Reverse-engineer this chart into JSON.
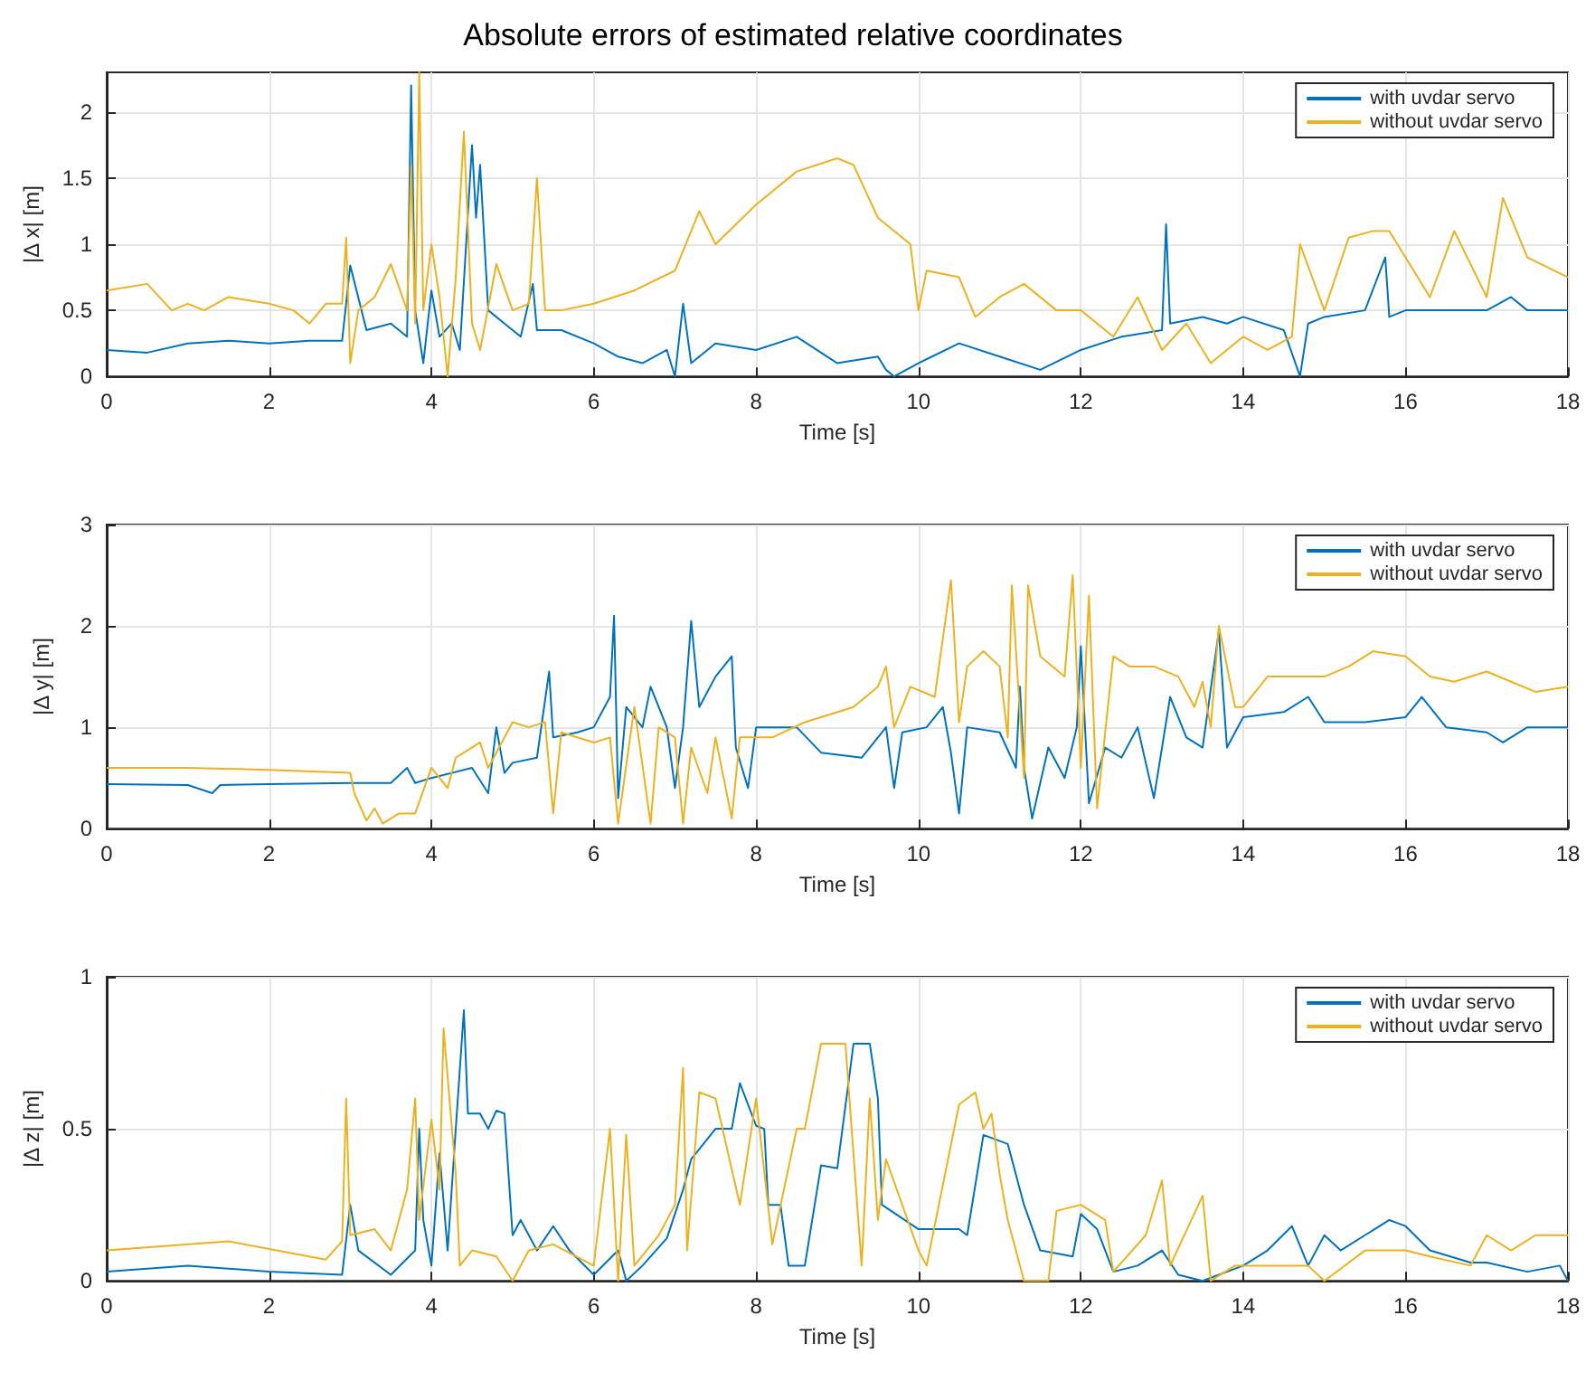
{
  "chart_data": [
    {
      "type": "line",
      "title": "Absolute errors of estimated relative coordinates",
      "xlabel": "Time [s]",
      "ylabel": "|Δ x| [m]",
      "xlim": [
        0,
        18
      ],
      "xticks": [
        0,
        2,
        4,
        6,
        8,
        10,
        12,
        14,
        16,
        18
      ],
      "ylim": [
        0,
        2.3
      ],
      "yticks": [
        0,
        0.5,
        1,
        1.5,
        2
      ],
      "grid": true,
      "legend": "top right",
      "marker": "none",
      "line_style": "solid",
      "series": [
        {
          "name": "with uvdar servo",
          "color": "#0072bd",
          "x": [
            0,
            0.5,
            1,
            1.5,
            2,
            2.5,
            2.9,
            3,
            3.2,
            3.5,
            3.7,
            3.75,
            3.8,
            3.9,
            4,
            4.1,
            4.25,
            4.35,
            4.5,
            4.55,
            4.6,
            4.7,
            4.9,
            5.1,
            5.25,
            5.3,
            5.6,
            6,
            6.3,
            6.6,
            6.9,
            7,
            7.1,
            7.2,
            7.5,
            8,
            8.5,
            9,
            9.5,
            9.6,
            9.7,
            10,
            10.5,
            11,
            11.5,
            12,
            12.5,
            13,
            13.05,
            13.1,
            13.5,
            13.8,
            14,
            14.5,
            14.7,
            14.8,
            15,
            15.5,
            15.75,
            15.8,
            16,
            16.5,
            17,
            17.3,
            17.5,
            18
          ],
          "values": [
            0.2,
            0.18,
            0.25,
            0.27,
            0.25,
            0.27,
            0.27,
            0.84,
            0.35,
            0.4,
            0.3,
            2.2,
            0.5,
            0.1,
            0.65,
            0.3,
            0.4,
            0.2,
            1.75,
            1.2,
            1.6,
            0.5,
            0.4,
            0.3,
            0.7,
            0.35,
            0.35,
            0.25,
            0.15,
            0.1,
            0.2,
            0,
            0.55,
            0.1,
            0.25,
            0.2,
            0.3,
            0.1,
            0.15,
            0.05,
            0,
            0.1,
            0.25,
            0.15,
            0.05,
            0.2,
            0.3,
            0.35,
            1.15,
            0.4,
            0.45,
            0.4,
            0.45,
            0.35,
            0,
            0.4,
            0.45,
            0.5,
            0.9,
            0.45,
            0.5,
            0.5,
            0.5,
            0.6,
            0.5,
            0.5
          ]
        },
        {
          "name": "without uvdar servo",
          "color": "#edb120",
          "x": [
            0,
            0.5,
            0.8,
            1,
            1.2,
            1.5,
            2,
            2.3,
            2.5,
            2.7,
            2.9,
            2.95,
            3,
            3.1,
            3.3,
            3.5,
            3.7,
            3.75,
            3.8,
            3.85,
            3.9,
            4,
            4.1,
            4.2,
            4.3,
            4.4,
            4.5,
            4.6,
            4.8,
            5,
            5.2,
            5.3,
            5.4,
            5.6,
            6,
            6.5,
            7,
            7.3,
            7.5,
            8,
            8.5,
            9,
            9.2,
            9.5,
            9.9,
            10,
            10.1,
            10.5,
            10.7,
            11,
            11.3,
            11.7,
            12,
            12.4,
            12.7,
            13,
            13.3,
            13.6,
            14,
            14.3,
            14.6,
            14.7,
            15,
            15.3,
            15.6,
            15.8,
            16.3,
            16.6,
            17,
            17.2,
            17.5,
            18
          ],
          "values": [
            0.65,
            0.7,
            0.5,
            0.55,
            0.5,
            0.6,
            0.55,
            0.5,
            0.4,
            0.55,
            0.55,
            1.05,
            0.1,
            0.5,
            0.6,
            0.85,
            0.5,
            1.6,
            0.4,
            2.3,
            0.5,
            1,
            0.6,
            0,
            0.75,
            1.85,
            0.4,
            0.2,
            0.85,
            0.5,
            0.55,
            1.5,
            0.5,
            0.5,
            0.55,
            0.65,
            0.8,
            1.25,
            1,
            1.3,
            1.55,
            1.65,
            1.6,
            1.2,
            1,
            0.5,
            0.8,
            0.75,
            0.45,
            0.6,
            0.7,
            0.5,
            0.5,
            0.3,
            0.6,
            0.2,
            0.4,
            0.1,
            0.3,
            0.2,
            0.3,
            1,
            0.5,
            1.05,
            1.1,
            1.1,
            0.6,
            1.1,
            0.6,
            1.35,
            0.9,
            0.75
          ]
        }
      ]
    },
    {
      "type": "line",
      "xlabel": "Time [s]",
      "ylabel": "|Δ y| [m]",
      "xlim": [
        0,
        18
      ],
      "xticks": [
        0,
        2,
        4,
        6,
        8,
        10,
        12,
        14,
        16,
        18
      ],
      "ylim": [
        0,
        3
      ],
      "yticks": [
        0,
        1,
        2,
        3
      ],
      "grid": true,
      "legend": "top right",
      "marker": "none",
      "line_style": "solid",
      "series": [
        {
          "name": "with uvdar servo",
          "color": "#0072bd",
          "x": [
            0,
            1,
            1.3,
            1.4,
            2,
            3,
            3.5,
            3.7,
            3.8,
            4,
            4.5,
            4.7,
            4.8,
            4.9,
            5,
            5.3,
            5.45,
            5.5,
            5.8,
            6,
            6.2,
            6.25,
            6.3,
            6.4,
            6.6,
            6.7,
            6.9,
            7,
            7.1,
            7.2,
            7.3,
            7.5,
            7.7,
            7.75,
            7.9,
            8,
            8.5,
            8.8,
            9.3,
            9.6,
            9.7,
            9.8,
            10.1,
            10.3,
            10.4,
            10.5,
            10.6,
            11,
            11.2,
            11.25,
            11.3,
            11.4,
            11.6,
            11.8,
            11.95,
            12,
            12.1,
            12.3,
            12.5,
            12.7,
            12.9,
            13.1,
            13.3,
            13.5,
            13.7,
            13.8,
            14,
            14.5,
            14.8,
            15,
            15.5,
            16,
            16.2,
            16.5,
            17,
            17.2,
            17.5,
            18
          ],
          "values": [
            0.44,
            0.43,
            0.35,
            0.43,
            0.44,
            0.45,
            0.45,
            0.6,
            0.45,
            0.5,
            0.6,
            0.35,
            1,
            0.55,
            0.65,
            0.7,
            1.55,
            0.9,
            0.95,
            1,
            1.3,
            2.1,
            0.3,
            1.2,
            1,
            1.4,
            1,
            0.4,
            1,
            2.05,
            1.2,
            1.5,
            1.7,
            0.8,
            0.4,
            1,
            1,
            0.75,
            0.7,
            1,
            0.4,
            0.95,
            1,
            1.2,
            0.75,
            0.15,
            1,
            0.95,
            0.6,
            1.4,
            0.6,
            0.1,
            0.8,
            0.5,
            1,
            1.8,
            0.25,
            0.8,
            0.7,
            1,
            0.3,
            1.3,
            0.9,
            0.8,
            1.95,
            0.8,
            1.1,
            1.15,
            1.3,
            1.05,
            1.05,
            1.1,
            1.3,
            1,
            0.95,
            0.85,
            1,
            1
          ]
        },
        {
          "name": "without uvdar servo",
          "color": "#edb120",
          "x": [
            0,
            1,
            2,
            3,
            3.05,
            3.2,
            3.3,
            3.4,
            3.6,
            3.8,
            4,
            4.2,
            4.3,
            4.6,
            4.7,
            5,
            5.2,
            5.4,
            5.5,
            5.6,
            6,
            6.2,
            6.3,
            6.5,
            6.7,
            6.8,
            7,
            7.1,
            7.2,
            7.4,
            7.5,
            7.7,
            7.8,
            8.2,
            8.6,
            8.8,
            9.2,
            9.5,
            9.6,
            9.7,
            9.9,
            10.2,
            10.4,
            10.5,
            10.6,
            10.8,
            11,
            11.1,
            11.15,
            11.3,
            11.35,
            11.5,
            11.8,
            11.9,
            12,
            12.1,
            12.2,
            12.4,
            12.6,
            12.9,
            13.2,
            13.4,
            13.5,
            13.6,
            13.7,
            13.9,
            14,
            14.3,
            14.6,
            15,
            15.3,
            15.6,
            16,
            16.3,
            16.6,
            17,
            17.3,
            17.6,
            18
          ],
          "values": [
            0.6,
            0.6,
            0.58,
            0.55,
            0.35,
            0.08,
            0.2,
            0.05,
            0.15,
            0.15,
            0.6,
            0.4,
            0.7,
            0.85,
            0.6,
            1.05,
            1,
            1.05,
            0.15,
            0.95,
            0.85,
            0.9,
            0.05,
            1.2,
            0.05,
            1,
            0.9,
            0.05,
            0.8,
            0.35,
            0.9,
            0.1,
            0.9,
            0.9,
            1.05,
            1.1,
            1.2,
            1.4,
            1.6,
            1,
            1.4,
            1.3,
            2.45,
            1.05,
            1.6,
            1.75,
            1.6,
            0.9,
            2.4,
            0.5,
            2.4,
            1.7,
            1.5,
            2.5,
            0.6,
            2.3,
            0.2,
            1.7,
            1.6,
            1.6,
            1.5,
            1.2,
            1.45,
            1,
            2,
            1.2,
            1.2,
            1.5,
            1.5,
            1.5,
            1.6,
            1.75,
            1.7,
            1.5,
            1.45,
            1.55,
            1.45,
            1.35,
            1.4
          ]
        }
      ]
    },
    {
      "type": "line",
      "xlabel": "Time [s]",
      "ylabel": "|Δ z| [m]",
      "xlim": [
        0,
        18
      ],
      "xticks": [
        0,
        2,
        4,
        6,
        8,
        10,
        12,
        14,
        16,
        18
      ],
      "ylim": [
        0,
        1
      ],
      "yticks": [
        0,
        0.5,
        1
      ],
      "grid": true,
      "legend": "top right",
      "marker": "none",
      "line_style": "solid",
      "series": [
        {
          "name": "with uvdar servo",
          "color": "#0072bd",
          "x": [
            0,
            1,
            2,
            2.9,
            3,
            3.1,
            3.5,
            3.8,
            3.85,
            3.9,
            4,
            4.1,
            4.2,
            4.3,
            4.4,
            4.45,
            4.6,
            4.7,
            4.8,
            4.9,
            5,
            5.1,
            5.3,
            5.5,
            5.7,
            6,
            6.3,
            6.4,
            6.6,
            6.9,
            7.1,
            7.2,
            7.5,
            7.7,
            7.8,
            8,
            8.1,
            8.15,
            8.3,
            8.4,
            8.6,
            8.8,
            9,
            9.2,
            9.4,
            9.5,
            9.55,
            10,
            10.5,
            10.6,
            10.8,
            11.1,
            11.3,
            11.5,
            11.9,
            12,
            12.2,
            12.4,
            12.7,
            13,
            13.2,
            13.5,
            14,
            14.3,
            14.6,
            14.8,
            15,
            15.2,
            15.5,
            15.8,
            16,
            16.3,
            16.8,
            17,
            17.5,
            17.9,
            18
          ],
          "values": [
            0.03,
            0.05,
            0.03,
            0.02,
            0.25,
            0.1,
            0.02,
            0.1,
            0.5,
            0.2,
            0.05,
            0.42,
            0.1,
            0.5,
            0.89,
            0.55,
            0.55,
            0.5,
            0.56,
            0.55,
            0.15,
            0.2,
            0.1,
            0.18,
            0.1,
            0.02,
            0.1,
            0,
            0.05,
            0.14,
            0.3,
            0.4,
            0.5,
            0.5,
            0.65,
            0.51,
            0.5,
            0.25,
            0.25,
            0.05,
            0.05,
            0.38,
            0.37,
            0.78,
            0.78,
            0.6,
            0.25,
            0.17,
            0.17,
            0.15,
            0.48,
            0.45,
            0.25,
            0.1,
            0.08,
            0.22,
            0.17,
            0.03,
            0.05,
            0.1,
            0.02,
            0,
            0.05,
            0.1,
            0.18,
            0.05,
            0.15,
            0.1,
            0.15,
            0.2,
            0.18,
            0.1,
            0.06,
            0.06,
            0.03,
            0.05,
            0
          ]
        },
        {
          "name": "without uvdar servo",
          "color": "#edb120",
          "x": [
            0,
            1.5,
            2.7,
            2.9,
            2.95,
            3,
            3.3,
            3.5,
            3.7,
            3.8,
            3.85,
            4,
            4.1,
            4.15,
            4.3,
            4.35,
            4.5,
            4.8,
            5,
            5.2,
            5.5,
            6,
            6.2,
            6.3,
            6.4,
            6.5,
            6.8,
            7,
            7.1,
            7.15,
            7.3,
            7.5,
            7.8,
            8,
            8.2,
            8.5,
            8.6,
            8.8,
            9.1,
            9.3,
            9.4,
            9.5,
            9.6,
            10,
            10.1,
            10.5,
            10.7,
            10.8,
            10.9,
            11,
            11.1,
            11.3,
            11.6,
            11.7,
            12,
            12.3,
            12.4,
            12.8,
            13,
            13.1,
            13.5,
            13.6,
            13.9,
            14.3,
            14.8,
            15,
            15.5,
            16,
            16.3,
            16.8,
            17,
            17.3,
            17.6,
            18
          ],
          "values": [
            0.1,
            0.13,
            0.07,
            0.13,
            0.6,
            0.15,
            0.17,
            0.1,
            0.3,
            0.6,
            0.2,
            0.53,
            0.3,
            0.83,
            0.35,
            0.05,
            0.1,
            0.08,
            0,
            0.1,
            0.12,
            0.05,
            0.5,
            0,
            0.48,
            0.05,
            0.15,
            0.25,
            0.7,
            0.1,
            0.62,
            0.6,
            0.25,
            0.6,
            0.12,
            0.5,
            0.5,
            0.78,
            0.78,
            0.05,
            0.6,
            0.2,
            0.4,
            0.1,
            0.05,
            0.58,
            0.62,
            0.5,
            0.55,
            0.35,
            0.2,
            0,
            0,
            0.23,
            0.25,
            0.2,
            0.03,
            0.15,
            0.33,
            0.05,
            0.28,
            0,
            0.05,
            0.05,
            0.05,
            0,
            0.1,
            0.1,
            0.08,
            0.05,
            0.15,
            0.1,
            0.15,
            0.15
          ]
        }
      ]
    }
  ]
}
